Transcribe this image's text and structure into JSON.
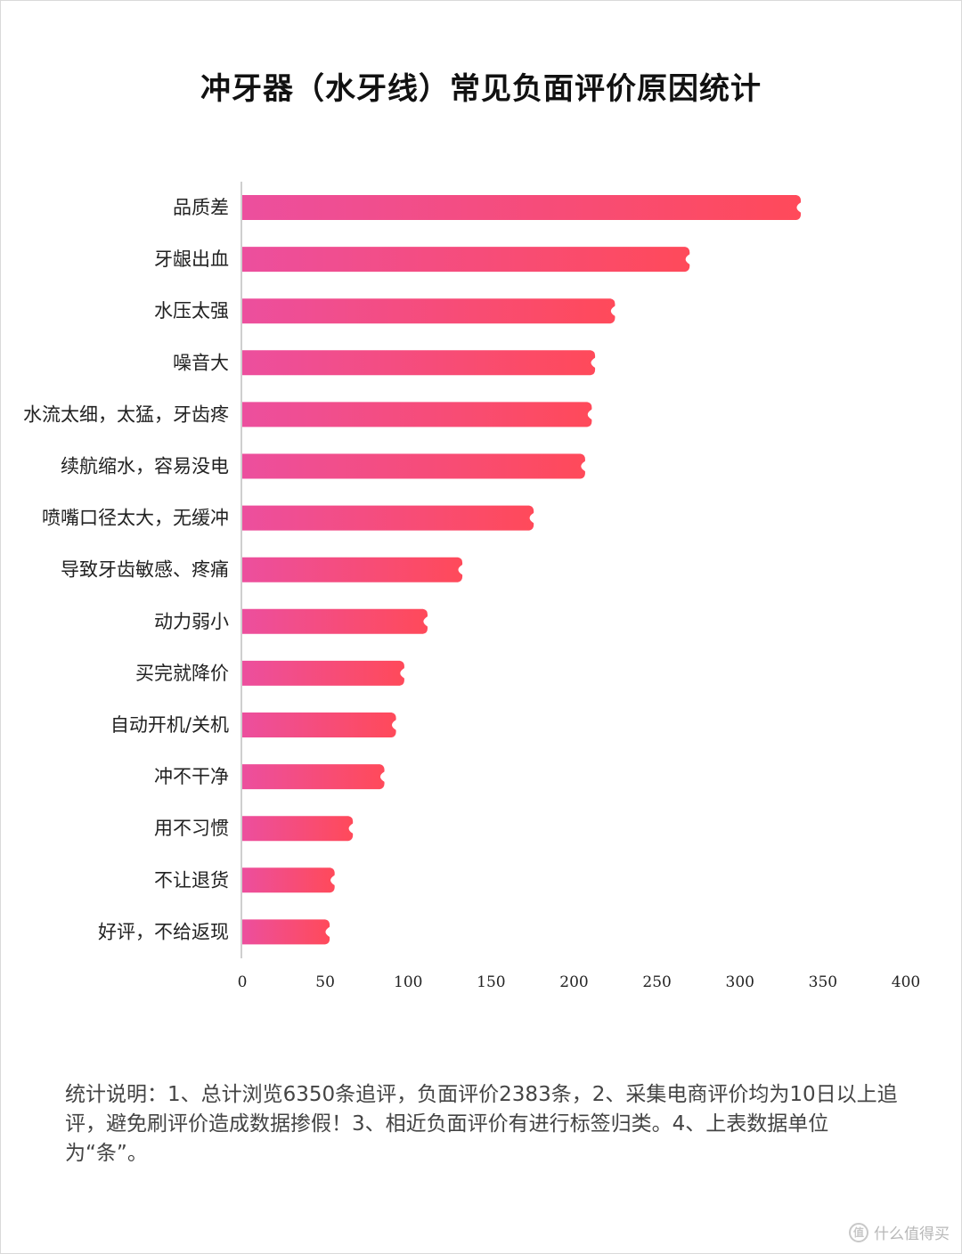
{
  "chart_data": {
    "type": "bar",
    "orientation": "horizontal",
    "title": "冲牙器（水牙线）常见负面评价原因统计",
    "categories": [
      "品质差",
      "牙龈出血",
      "水压太强",
      "噪音大",
      "水流太细，太猛，牙齿疼",
      "续航缩水，容易没电",
      "喷嘴口径太大，无缓冲",
      "导致牙齿敏感、疼痛",
      "动力弱小",
      "买完就降价",
      "自动开机/关机",
      "冲不干净",
      "用不习惯",
      "不让退货",
      "好评，不给返现"
    ],
    "values": [
      335,
      268,
      223,
      211,
      209,
      205,
      174,
      131,
      110,
      96,
      91,
      84,
      65,
      54,
      51
    ],
    "xlim": [
      0,
      400
    ],
    "x_ticks": [
      0,
      50,
      100,
      150,
      200,
      250,
      300,
      350,
      400
    ],
    "grid": false,
    "bar_gradient": [
      "#ec4f9e",
      "#ff4a5a"
    ]
  },
  "note": "统计说明：1、总计浏览6350条追评，负面评价2383条，2、采集电商评价均为10日以上追评，避免刷评价造成数据掺假！3、相近负面评价有进行标签归类。4、上表数据单位为“条”。",
  "watermark": {
    "icon": "值",
    "text": "什么值得买"
  }
}
